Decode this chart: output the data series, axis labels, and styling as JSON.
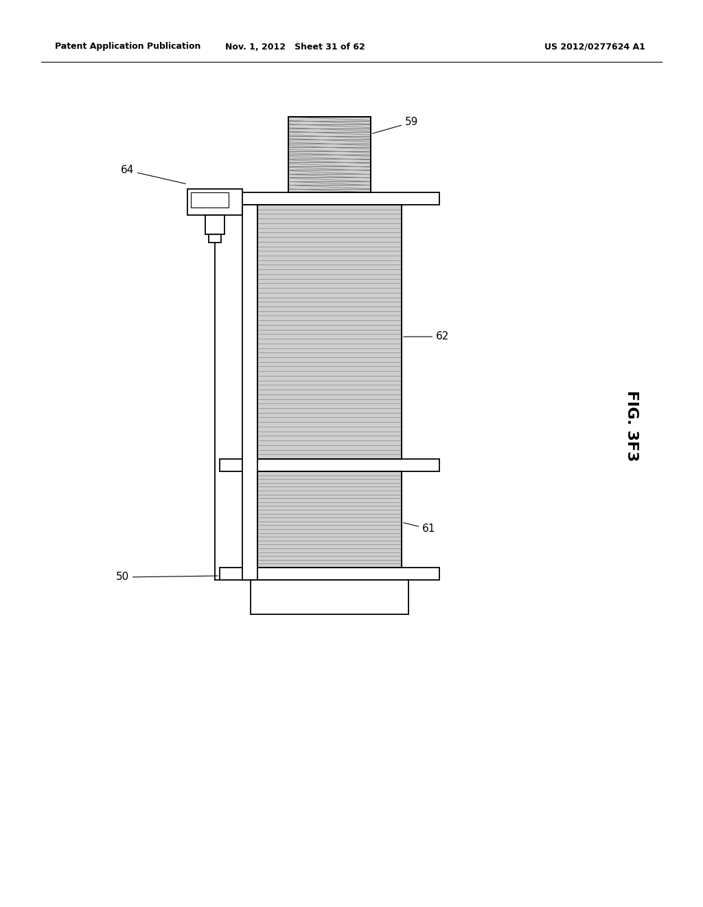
{
  "background_color": "#ffffff",
  "header_left": "Patent Application Publication",
  "header_mid": "Nov. 1, 2012   Sheet 31 of 62",
  "header_right": "US 2012/0277624 A1",
  "fig_label": "FIG. 3F3",
  "line_color": "#000000",
  "gray_fill": "#c8c8c8",
  "white_fill": "#ffffff",
  "label_fontsize": 11,
  "header_fontsize": 9,
  "fig_fontsize": 16
}
